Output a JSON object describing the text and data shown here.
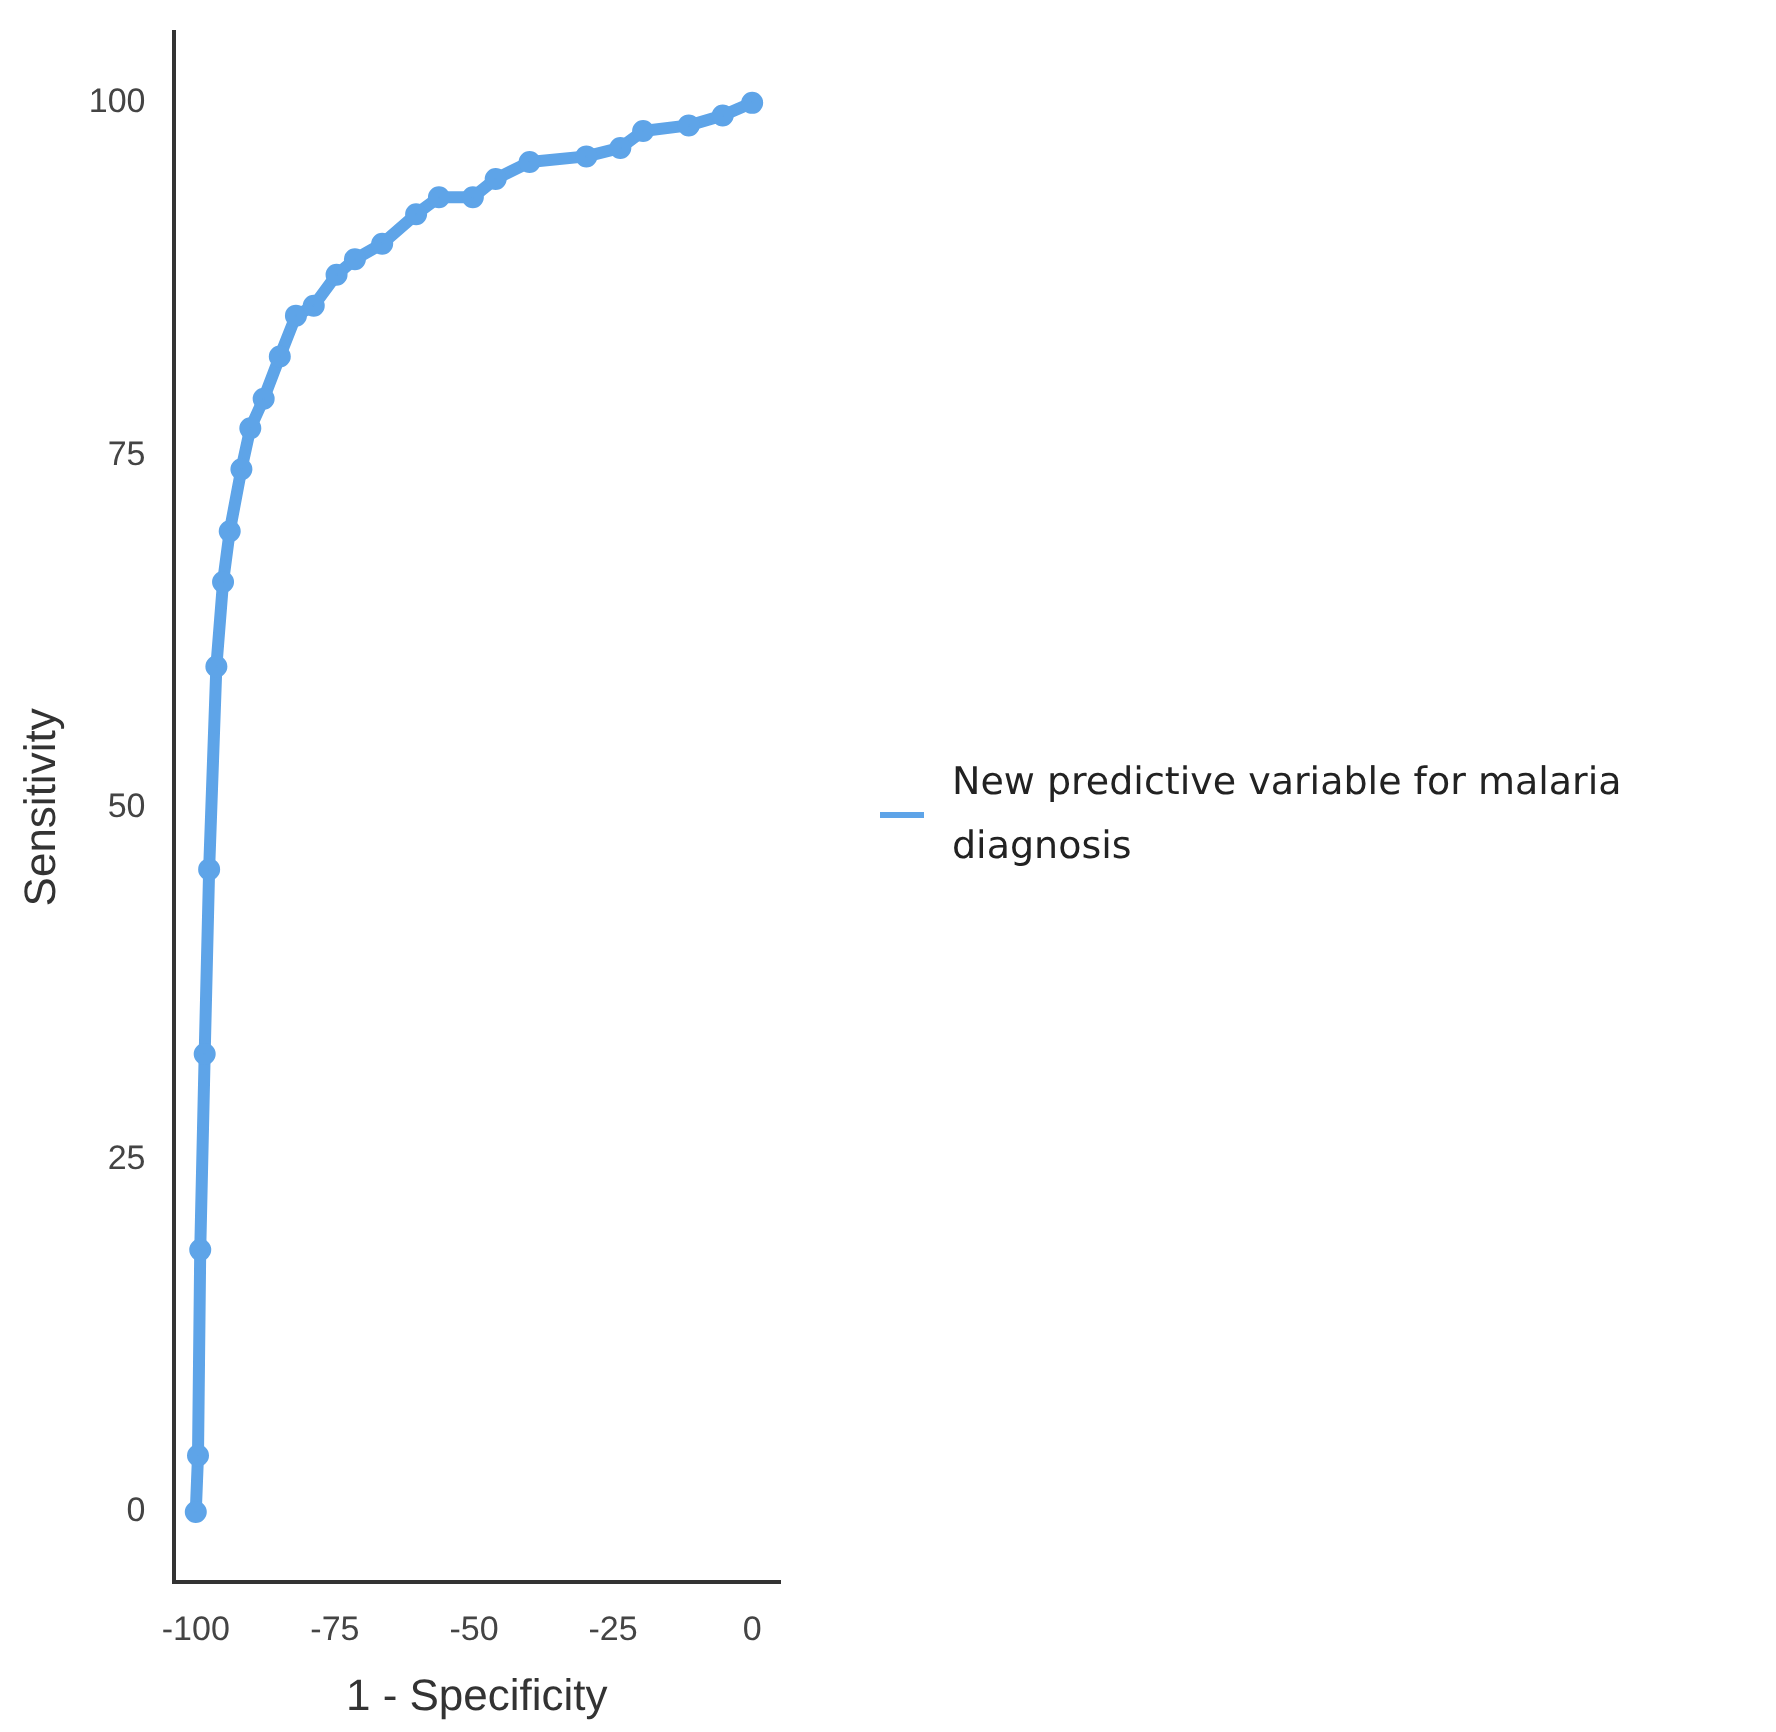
{
  "chart_data": {
    "type": "line",
    "xlabel": "1 - Specificity",
    "ylabel": "Sensitivity",
    "xlim": [
      -104,
      5
    ],
    "ylim": [
      -5,
      105
    ],
    "xticks": [
      -100,
      -75,
      -50,
      -25,
      0
    ],
    "yticks": [
      0,
      25,
      50,
      75,
      100
    ],
    "grid": false,
    "legend": "right",
    "marker": "circle",
    "line_style": "solid",
    "series": [
      {
        "name": "New predictive variable for malaria diagnosis",
        "color": "#5ea4e8",
        "x": [
          -100,
          -99.6,
          -99.2,
          -98.4,
          -97.6,
          -96.3,
          -95.1,
          -93.9,
          -91.8,
          -90.2,
          -87.8,
          -84.9,
          -82,
          -78.8,
          -74.7,
          -71.4,
          -66.5,
          -60.4,
          -56.3,
          -50.2,
          -46.1,
          -40,
          -29.8,
          -23.7,
          -19.6,
          -11.4,
          -5.3,
          0
        ],
        "values": [
          0,
          4,
          18.6,
          32.5,
          45.6,
          60,
          66,
          69.6,
          74,
          76.9,
          79,
          82,
          84.9,
          85.6,
          87.8,
          88.9,
          90,
          92.1,
          93.3,
          93.3,
          94.6,
          95.8,
          96.2,
          96.8,
          98,
          98.4,
          99.1,
          100
        ]
      }
    ]
  }
}
